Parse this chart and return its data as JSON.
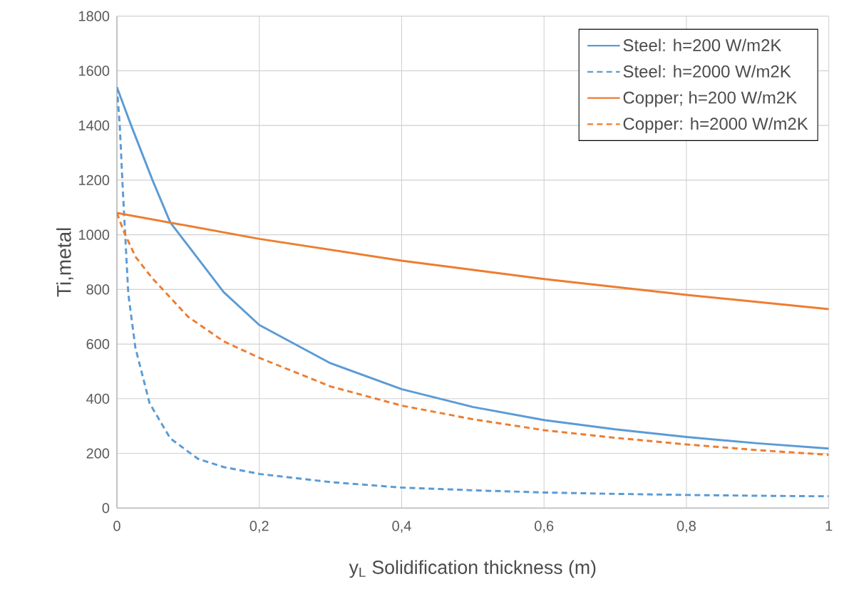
{
  "chart_data": {
    "type": "line",
    "xlabel": "y$_{L}$  Solidification thickness (m)",
    "ylabel": "Ti,metal",
    "xlim": [
      0,
      1
    ],
    "ylim": [
      0,
      1800
    ],
    "xticks": [
      0,
      {
        "value": 0.2,
        "label": "0,2"
      },
      {
        "value": 0.4,
        "label": "0,4"
      },
      {
        "value": 0.6,
        "label": "0,6"
      },
      {
        "value": 0.8,
        "label": "0,8"
      },
      1
    ],
    "yticks": [
      0,
      200,
      400,
      600,
      800,
      1000,
      1200,
      1400,
      1600,
      1800
    ],
    "grid": true,
    "legend": "top right",
    "marker": "none",
    "series": [
      {
        "name": "Steel: h=200 W/m2K",
        "color": "#5b9bd5",
        "line_style": "solid",
        "x": [
          0,
          0.02,
          0.05,
          0.075,
          0.1,
          0.15,
          0.2,
          0.3,
          0.4,
          0.5,
          0.6,
          0.7,
          0.8,
          0.9,
          1
        ],
        "values": [
          1540,
          1400,
          1200,
          1045,
          960,
          790,
          670,
          530,
          435,
          370,
          322,
          288,
          260,
          237,
          218
        ]
      },
      {
        "name": "Steel: h=2000 W/m2K",
        "color": "#5b9bd5",
        "line_style": "dashed",
        "x": [
          0,
          0.004,
          0.008,
          0.016,
          0.026,
          0.046,
          0.075,
          0.114,
          0.15,
          0.2,
          0.3,
          0.4,
          0.5,
          0.6,
          0.7,
          0.8,
          0.9,
          1
        ],
        "values": [
          1540,
          1400,
          1180,
          784,
          586,
          383,
          255,
          180,
          150,
          125,
          95,
          75,
          65,
          57,
          52,
          48,
          45,
          43
        ]
      },
      {
        "name": "Copper; h=200 W/m2K",
        "color": "#ed7d31",
        "line_style": "solid",
        "x": [
          0,
          0.2,
          0.4,
          0.6,
          0.8,
          1
        ],
        "values": [
          1080,
          985,
          905,
          838,
          780,
          728
        ]
      },
      {
        "name": "Copper: h=2000 W/m2K",
        "color": "#ed7d31",
        "line_style": "dashed",
        "x": [
          0,
          0.01,
          0.026,
          0.05,
          0.074,
          0.1,
          0.15,
          0.2,
          0.3,
          0.4,
          0.5,
          0.6,
          0.7,
          0.8,
          0.9,
          1
        ],
        "values": [
          1080,
          1010,
          920,
          840,
          773,
          700,
          610,
          550,
          445,
          375,
          325,
          285,
          257,
          233,
          212,
          195
        ]
      }
    ]
  }
}
